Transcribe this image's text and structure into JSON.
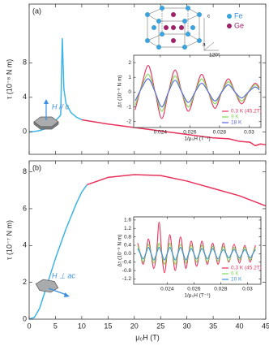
{
  "chart_data": [
    {
      "type": "line",
      "panel_label": "(a)",
      "ylabel": "τ (10⁻⁸ N m)",
      "field_label": "H // c",
      "crystal_labels": {
        "fe": "Fe",
        "ge": "Ge",
        "a": "a",
        "c": "c",
        "angle": "120°"
      },
      "xlim": [
        0,
        45
      ],
      "ylim": [
        -2.6,
        14.8
      ],
      "yticks": [
        0,
        4,
        8
      ],
      "series": [
        {
          "color": "#3db4e6",
          "x": [
            0,
            1,
            2,
            3,
            4,
            5,
            5.8,
            6.0,
            6.3,
            6.6,
            7,
            8,
            9,
            10
          ],
          "values": [
            0,
            0.05,
            0.15,
            0.35,
            0.7,
            1.3,
            1.8,
            2.0,
            10.8,
            5,
            3.3,
            2.2,
            1.7,
            1.4
          ]
        },
        {
          "color": "#e8325c",
          "x": [
            10,
            15,
            20,
            25,
            30,
            35,
            38,
            40,
            42,
            43,
            44,
            45
          ],
          "values": [
            1.4,
            0.9,
            0.5,
            0.1,
            -0.3,
            -0.7,
            -0.8,
            -1.1,
            -1.2,
            -1.6,
            -1.4,
            -1.5
          ]
        }
      ]
    },
    {
      "type": "line",
      "panel_label": "(b)",
      "ylabel": "τ (10⁻⁷ N m)",
      "xlabel": "μ₀H (T)",
      "field_label": "H ⊥ ac",
      "xlim": [
        0,
        45
      ],
      "ylim": [
        0,
        8.6
      ],
      "xticks": [
        0,
        5,
        10,
        15,
        20,
        25,
        30,
        35,
        40,
        45
      ],
      "yticks": [
        0,
        2,
        4,
        6,
        8
      ],
      "series": [
        {
          "color": "#3db4e6",
          "x": [
            0,
            1,
            2,
            3,
            4,
            5,
            6,
            7,
            8,
            9,
            10,
            11
          ],
          "values": [
            0,
            0.1,
            0.6,
            1.5,
            2.4,
            3.3,
            4.1,
            4.9,
            5.6,
            6.3,
            6.9,
            7.3
          ]
        },
        {
          "color": "#e8325c",
          "x": [
            11,
            15,
            20,
            25,
            30,
            35,
            40,
            45
          ],
          "values": [
            7.3,
            7.7,
            7.85,
            7.8,
            7.5,
            7.1,
            6.7,
            6.15
          ]
        }
      ]
    },
    {
      "type": "line",
      "xlabel": "1/μ₀H (T⁻¹)",
      "ylabel": "Δτ (10⁻⁹ N m)",
      "legend": "lower right",
      "xlim": [
        0.0222,
        0.0308
      ],
      "ylim": [
        -2.4,
        2.5
      ],
      "xticks": [
        0.024,
        0.026,
        0.028,
        0.03
      ],
      "yticks": [
        -2,
        -1,
        0,
        1,
        2
      ],
      "x": [
        0.0223,
        0.02275,
        0.0232,
        0.02365,
        0.0241,
        0.02455,
        0.025,
        0.02545,
        0.0259,
        0.02635,
        0.0268,
        0.02725,
        0.0277,
        0.02815,
        0.0286,
        0.02905,
        0.0295,
        0.02995,
        0.0304,
        0.0307
      ],
      "series": [
        {
          "name": "0.3 K (45.2T)",
          "color": "#e8325c",
          "values": [
            -1.2,
            0.5,
            1.8,
            0,
            -1.8,
            0,
            1.5,
            0,
            -1.3,
            0,
            1.2,
            0,
            -1.1,
            0,
            0.9,
            0,
            -0.8,
            0,
            0.6,
            0.3
          ]
        },
        {
          "name": "9 K",
          "color": "#7ed957",
          "values": [
            -0.9,
            0.4,
            1.2,
            0,
            -1.3,
            0,
            1.1,
            0,
            -1.0,
            0,
            0.9,
            0,
            -0.8,
            0,
            0.7,
            0,
            -0.6,
            0,
            0.5,
            0.2
          ]
        },
        {
          "name": "18 K",
          "color": "#5a62e0",
          "values": [
            -0.6,
            0.3,
            0.9,
            0,
            -1.0,
            0,
            0.8,
            0,
            -0.7,
            0,
            0.6,
            0,
            -0.6,
            0,
            0.5,
            0,
            -0.4,
            0,
            0.35,
            0.15
          ]
        }
      ]
    },
    {
      "type": "line",
      "xlabel": "1/μ₀H (T⁻¹)",
      "ylabel": "Δτ (10⁻⁹ N m)",
      "legend": "lower right",
      "xlim": [
        0.0215,
        0.031
      ],
      "ylim": [
        -1.45,
        1.75
      ],
      "xticks": [
        0.024,
        0.026,
        0.028,
        0.03
      ],
      "yticks": [
        {
          "value": -1.2,
          "label": "-1.2"
        },
        {
          "value": -0.8,
          "label": "-0.8"
        },
        {
          "value": -0.4,
          "label": "-0.4"
        },
        {
          "value": 0,
          "label": "0.0"
        },
        0.4,
        0.8,
        1.2,
        1.6
      ],
      "x": [
        0.0218,
        0.022,
        0.0222,
        0.0224,
        0.0226,
        0.0228,
        0.023,
        0.0232,
        0.0234,
        0.0236,
        0.0238,
        0.024,
        0.0242,
        0.0244,
        0.0246,
        0.0248,
        0.025,
        0.0252,
        0.0254,
        0.0256,
        0.0258,
        0.026,
        0.0262,
        0.0264,
        0.0266,
        0.0268,
        0.027,
        0.0272,
        0.0274,
        0.0276,
        0.0278,
        0.028,
        0.0282,
        0.0284,
        0.0286,
        0.0288,
        0.029,
        0.0292,
        0.0294,
        0.0296,
        0.0298,
        0.03,
        0.0302,
        0.0304,
        0.0306
      ],
      "series": [
        {
          "name": "0.3 K (45.2T)",
          "color": "#e8325c",
          "values": [
            0.5,
            0,
            -0.5,
            0,
            0.7,
            0,
            -0.7,
            0,
            1.5,
            0,
            -0.9,
            0,
            0.9,
            0,
            -0.8,
            0,
            0.8,
            0,
            -0.7,
            0,
            0.6,
            0,
            -0.6,
            0,
            0.6,
            0,
            -0.5,
            0,
            0.5,
            0,
            -0.5,
            0,
            0.5,
            0,
            -0.4,
            0,
            0.45,
            0,
            -0.45,
            0,
            0.4,
            0,
            -0.4,
            0,
            0.4
          ]
        },
        {
          "name": "6 K",
          "color": "#7ed957",
          "values": [
            0.4,
            0,
            -0.4,
            0,
            0.45,
            0,
            -0.45,
            0,
            0.5,
            0,
            -0.5,
            0,
            0.5,
            0,
            -0.5,
            0,
            0.45,
            0,
            -0.45,
            0,
            0.4,
            0,
            -0.4,
            0,
            0.4,
            0,
            -0.4,
            0,
            0.35,
            0,
            -0.35,
            0,
            0.35,
            0,
            -0.35,
            0,
            0.3,
            0,
            -0.3,
            0,
            0.3,
            0,
            -0.3,
            0,
            0.3
          ]
        },
        {
          "name": "10 K",
          "color": "#3a8fe0",
          "values": [
            0.25,
            0,
            -0.25,
            0,
            0.3,
            0,
            -0.3,
            0,
            0.3,
            0,
            -0.3,
            0,
            0.3,
            0,
            -0.3,
            0,
            0.3,
            0,
            -0.3,
            0,
            0.25,
            0,
            -0.25,
            0,
            0.25,
            0,
            -0.25,
            0,
            0.25,
            0,
            -0.25,
            0,
            0.2,
            0,
            -0.2,
            0,
            0.2,
            0,
            -0.2,
            0,
            0.2,
            0,
            -0.2,
            0,
            0.2
          ]
        }
      ]
    }
  ]
}
